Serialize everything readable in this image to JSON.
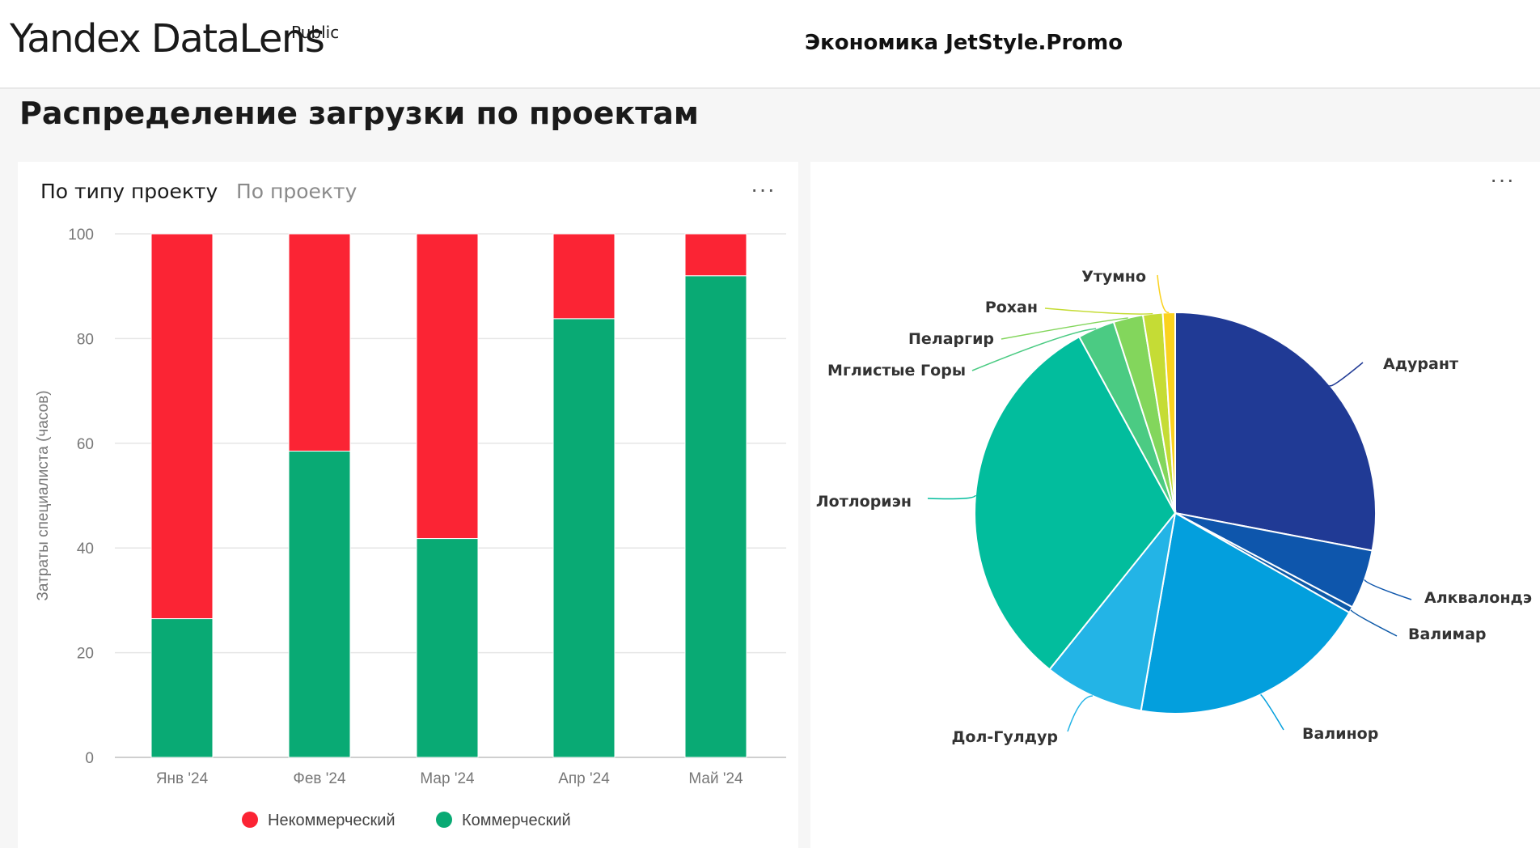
{
  "header": {
    "logo": "Yandex DataLens",
    "logo_badge": "Public",
    "dashboard_title": "Экономика JetStyle.Promo"
  },
  "section_title": "Распределение загрузки по проектам",
  "left_card": {
    "tabs": [
      {
        "label": "По типу проекту",
        "active": true
      },
      {
        "label": "По проекту",
        "active": false
      }
    ],
    "more_label": "···"
  },
  "right_card": {
    "more_label": "···"
  },
  "colors": {
    "noncommercial": "#fb2434",
    "commercial": "#09aa74"
  },
  "chart_data": [
    {
      "type": "bar",
      "stacked": true,
      "categories": [
        "Янв '24",
        "Фев '24",
        "Мар '24",
        "Апр '24",
        "Май '24"
      ],
      "series": [
        {
          "name": "Коммерческий",
          "color": "#09aa74",
          "values": [
            26.5,
            58.5,
            41.8,
            83.8,
            92
          ]
        },
        {
          "name": "Некоммерческий",
          "color": "#fb2434",
          "values": [
            73.5,
            41.5,
            58.2,
            16.2,
            8
          ]
        }
      ],
      "ylabel": "Затраты специалиста (часов)",
      "ylim": [
        0,
        100
      ],
      "yticks": [
        "0",
        "20",
        "40",
        "60",
        "80",
        "100"
      ],
      "grid": true,
      "legend": "bottom"
    },
    {
      "type": "pie",
      "slices": [
        {
          "label": "Адурант",
          "value": 28.2,
          "color": "#203a95"
        },
        {
          "label": "Алквалондэ",
          "value": 4.8,
          "color": "#0e56ac"
        },
        {
          "label": "Валимар",
          "value": 0.5,
          "color": "#0e5aa8"
        },
        {
          "label": "Валинор",
          "value": 19.6,
          "color": "#039fdd"
        },
        {
          "label": "Дол-Гулдур",
          "value": 8.1,
          "color": "#23b4e6"
        },
        {
          "label": "Лотлориэн",
          "value": 31.5,
          "color": "#02bd9d"
        },
        {
          "label": "Мглистые Горы",
          "value": 3.0,
          "color": "#4bcb83"
        },
        {
          "label": "Пеларгир",
          "value": 2.4,
          "color": "#83d65c"
        },
        {
          "label": "Рохан",
          "value": 1.6,
          "color": "#c5dc35"
        },
        {
          "label": "Утумно",
          "value": 1.0,
          "color": "#fbd21f"
        }
      ],
      "legend": "none"
    }
  ]
}
